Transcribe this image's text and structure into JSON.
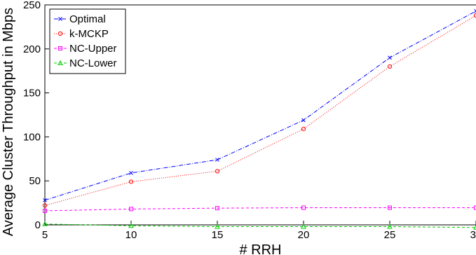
{
  "chart_data": {
    "type": "line",
    "title": "",
    "xlabel": "# RRH",
    "ylabel": "Average Cluster Throughput in Mbps",
    "x": [
      5,
      10,
      15,
      20,
      25,
      30
    ],
    "xlim": [
      5,
      30
    ],
    "ylim": [
      0,
      250
    ],
    "xticks": [
      "5",
      "10",
      "15",
      "20",
      "25",
      "30"
    ],
    "yticks": [
      "0",
      "50",
      "100",
      "150",
      "200",
      "250"
    ],
    "grid": false,
    "legend_position": "top-left",
    "series": [
      {
        "name": "Optimal",
        "color": "#0000ff",
        "marker": "x",
        "dash": "dashdot",
        "values": [
          28,
          59,
          74,
          119,
          190,
          243
        ]
      },
      {
        "name": "k-MCKP",
        "color": "#ff0000",
        "marker": "o",
        "dash": "dotted",
        "values": [
          22,
          49,
          61,
          109,
          180,
          238
        ]
      },
      {
        "name": "NC-Upper",
        "color": "#ff00ff",
        "marker": "square",
        "dash": "dashed",
        "values": [
          16,
          18,
          19,
          19.5,
          19.5,
          19.5
        ]
      },
      {
        "name": "NC-Lower",
        "color": "#00cc00",
        "marker": "triangle",
        "dash": "dashed",
        "values": [
          1,
          -1,
          -2,
          -2,
          -2,
          -3
        ]
      }
    ]
  }
}
